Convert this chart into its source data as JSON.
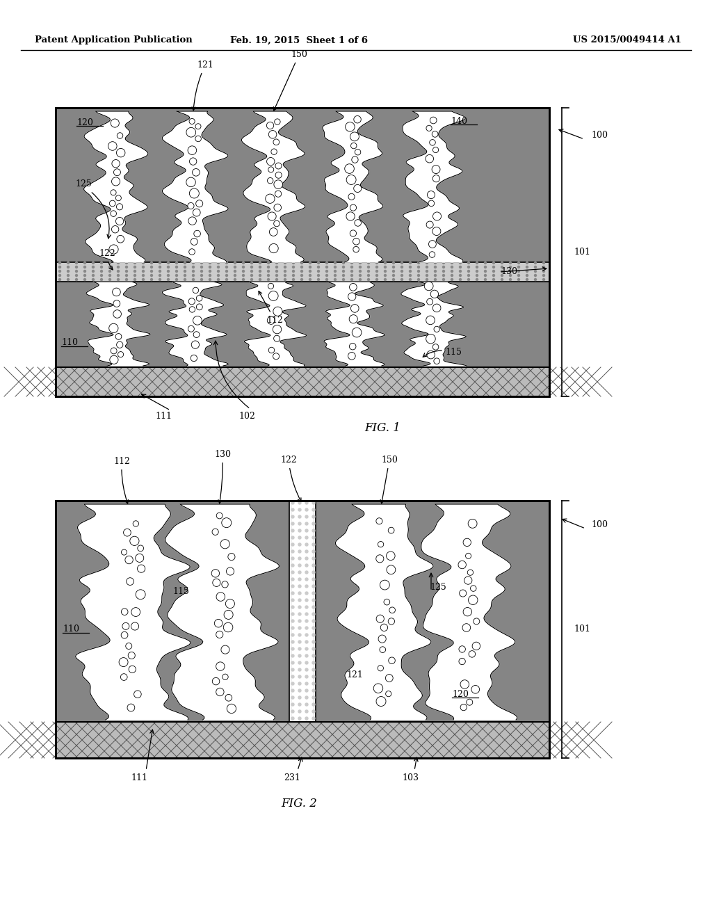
{
  "header_left": "Patent Application Publication",
  "header_mid": "Feb. 19, 2015  Sheet 1 of 6",
  "header_right": "US 2015/0049414 A1",
  "fig1_label": "FIG. 1",
  "fig2_label": "FIG. 2",
  "bg_color": "#ffffff",
  "gray_dark": "#7a7a7a",
  "gray_light": "#b0b0b0",
  "crosshatch_bg": "#b8b8b8",
  "separator_color": "#d0d0d0",
  "white": "#ffffff",
  "black": "#000000"
}
